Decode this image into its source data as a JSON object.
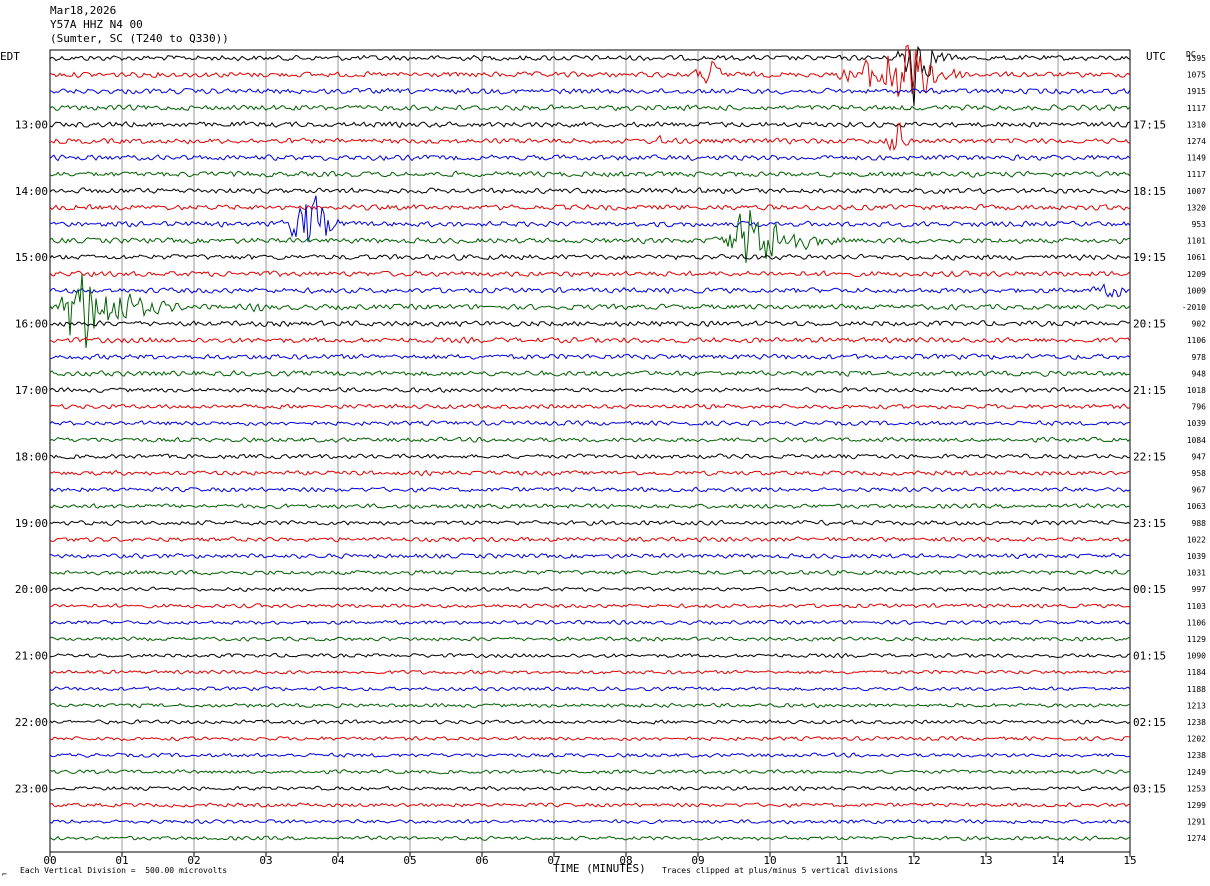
{
  "header": {
    "date": "Mar18,2026",
    "station": "Y57A HHZ N4 00",
    "location": "(Sumter, SC (T240 to Q330))"
  },
  "left_tz": "EDT",
  "right_tz": "UTC",
  "dc_label": "DC",
  "footer": {
    "scale": "Each Vertical Division =  500.00 microvolts",
    "clip": "Traces clipped at plus/minus 5 vertical divisions",
    "corner": "⌐"
  },
  "colors": {
    "black": "#000000",
    "red": "#e00000",
    "blue": "#0000dd",
    "green": "#006000",
    "grid": "#9a9a9a"
  },
  "chart_data": {
    "type": "line",
    "xlabel": "TIME (MINUTES)",
    "x_ticks": [
      "00",
      "01",
      "02",
      "03",
      "04",
      "05",
      "06",
      "07",
      "08",
      "09",
      "10",
      "11",
      "12",
      "13",
      "14",
      "15"
    ],
    "xlim": [
      0,
      15
    ],
    "trace_colors": [
      "black",
      "red",
      "blue",
      "green"
    ],
    "left_labels": [
      {
        "row": 4,
        "text": "13:00"
      },
      {
        "row": 8,
        "text": "14:00"
      },
      {
        "row": 12,
        "text": "15:00"
      },
      {
        "row": 16,
        "text": "16:00"
      },
      {
        "row": 20,
        "text": "17:00"
      },
      {
        "row": 24,
        "text": "18:00"
      },
      {
        "row": 28,
        "text": "19:00"
      },
      {
        "row": 32,
        "text": "20:00"
      },
      {
        "row": 36,
        "text": "21:00"
      },
      {
        "row": 40,
        "text": "22:00"
      },
      {
        "row": 44,
        "text": "23:00"
      }
    ],
    "right_labels": [
      {
        "row": 4,
        "text": "17:15"
      },
      {
        "row": 8,
        "text": "18:15"
      },
      {
        "row": 12,
        "text": "19:15"
      },
      {
        "row": 16,
        "text": "20:15"
      },
      {
        "row": 20,
        "text": "21:15"
      },
      {
        "row": 24,
        "text": "22:15"
      },
      {
        "row": 28,
        "text": "23:15"
      },
      {
        "row": 32,
        "text": "00:15"
      },
      {
        "row": 36,
        "text": "01:15"
      },
      {
        "row": 40,
        "text": "02:15"
      },
      {
        "row": 44,
        "text": "03:15"
      }
    ],
    "dc_offsets": [
      "1395",
      "1075",
      "1915",
      "1117",
      "1310",
      "1274",
      "1149",
      "1117",
      "1007",
      "1320",
      "953",
      "1101",
      "1061",
      "1209",
      "1009",
      "-2010",
      "902",
      "1106",
      "978",
      "948",
      "1018",
      "796",
      "1039",
      "1084",
      "947",
      "958",
      "967",
      "1063",
      "988",
      "1022",
      "1039",
      "1031",
      "997",
      "1103",
      "1106",
      "1129",
      "1090",
      "1184",
      "1188",
      "1213",
      "1238",
      "1202",
      "1238",
      "1249",
      "1253",
      "1299",
      "1291",
      "1274"
    ],
    "events": [
      {
        "row": 1,
        "start": 8.6,
        "end": 9.8,
        "amp": 14,
        "peak": 9.2
      },
      {
        "row": 1,
        "start": 10.5,
        "end": 13.0,
        "amp": 40,
        "peak": 11.9
      },
      {
        "row": 0,
        "start": 11.6,
        "end": 12.6,
        "amp": 50,
        "peak": 12.0
      },
      {
        "row": 5,
        "start": 8.3,
        "end": 8.8,
        "amp": 8,
        "peak": 8.5
      },
      {
        "row": 5,
        "start": 11.4,
        "end": 12.0,
        "amp": 22,
        "peak": 11.8
      },
      {
        "row": 10,
        "start": 3.0,
        "end": 4.2,
        "amp": 40,
        "peak": 3.65
      },
      {
        "row": 11,
        "start": 9.0,
        "end": 11.2,
        "amp": 40,
        "peak": 9.75
      },
      {
        "row": 14,
        "start": 13.8,
        "end": 15.0,
        "amp": 10,
        "peak": 14.9
      },
      {
        "row": 15,
        "start": 0.0,
        "end": 2.0,
        "amp": 55,
        "peak": 0.35
      },
      {
        "row": 15,
        "start": 2.6,
        "end": 3.2,
        "amp": 8,
        "peak": 2.9
      }
    ]
  }
}
